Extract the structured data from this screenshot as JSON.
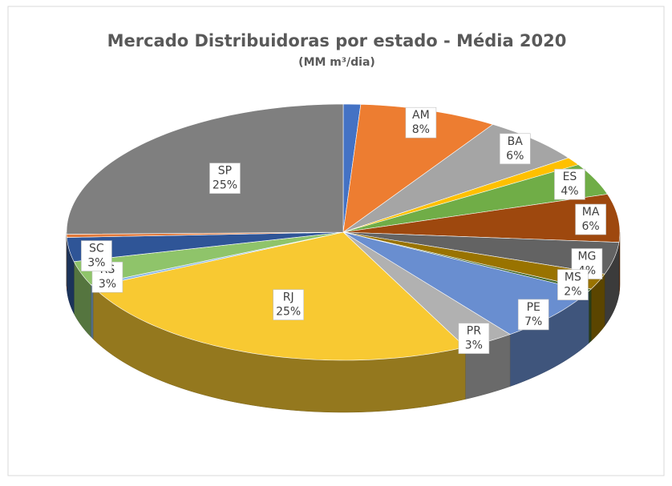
{
  "chart_data": {
    "type": "pie3d",
    "title": "Mercado Distribuidoras por estado - Média 2020",
    "subtitle": "(MM m³/dia)",
    "categories": [
      null,
      "AM",
      "BA",
      null,
      "ES",
      "MA",
      "MG",
      "MS",
      null,
      "PE",
      "PR",
      "RJ",
      null,
      "RS",
      "SC",
      null,
      "SP"
    ],
    "values": [
      1,
      8,
      6,
      1,
      4,
      6,
      4,
      2,
      0.3,
      7,
      3,
      25,
      0.3,
      3,
      3,
      0.4,
      25
    ],
    "value_labels": [
      null,
      "8%",
      "6%",
      null,
      "4%",
      "6%",
      "4%",
      "2%",
      null,
      "7%",
      "3%",
      "25%",
      null,
      "3%",
      "3%",
      null,
      "25%"
    ],
    "colors": [
      "#4472c4",
      "#ed7d31",
      "#a5a5a5",
      "#ffc000",
      "#70ad47",
      "#9e480e",
      "#636363",
      "#997300",
      "#43682b",
      "#698ed0",
      "#b1b1b1",
      "#f8c932",
      "#8cb8e6",
      "#8fc46a",
      "#2f5597",
      "#e2793a",
      "#7f7f7f"
    ]
  }
}
